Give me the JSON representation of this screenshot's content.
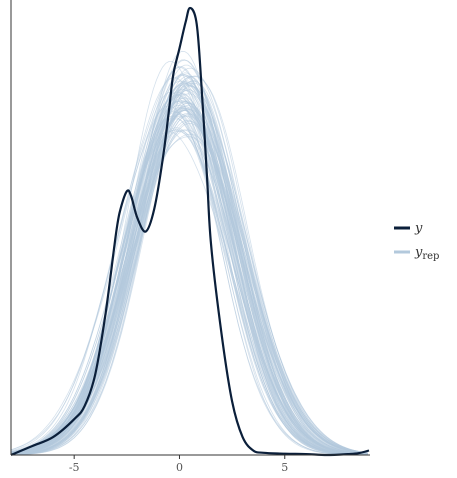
{
  "chart_data": {
    "type": "line",
    "title": "",
    "xlabel": "",
    "ylabel": "",
    "xlim": [
      -8,
      9
    ],
    "ylim": [
      0,
      1
    ],
    "x_ticks": [
      {
        "value": -5,
        "label": "-5"
      },
      {
        "value": 0,
        "label": "0"
      },
      {
        "value": 5,
        "label": "5"
      }
    ],
    "grid": false,
    "legend_position": "right",
    "legend": [
      {
        "key": "y",
        "label": "y",
        "subscript": "",
        "color": "#0b1f3a"
      },
      {
        "key": "yrep",
        "label": "y",
        "subscript": "rep",
        "color": "#b3c9dc"
      }
    ],
    "series": [
      {
        "key": "y",
        "color": "#0b1f3a",
        "x": [
          -8,
          -7,
          -6,
          -5,
          -4.5,
          -4,
          -3.5,
          -3,
          -2.8,
          -2.5,
          -2.3,
          -2,
          -1.6,
          -1.2,
          -0.8,
          -0.5,
          -0.3,
          0,
          0.3,
          0.5,
          0.8,
          1,
          1.3,
          1.5,
          2,
          2.5,
          3,
          3.5,
          4,
          5,
          6,
          7,
          8,
          8.5,
          9
        ],
        "values": [
          0.0,
          0.02,
          0.04,
          0.08,
          0.11,
          0.18,
          0.32,
          0.5,
          0.55,
          0.59,
          0.58,
          0.53,
          0.5,
          0.55,
          0.66,
          0.77,
          0.85,
          0.91,
          0.97,
          1.0,
          0.97,
          0.86,
          0.63,
          0.47,
          0.27,
          0.12,
          0.04,
          0.01,
          0.005,
          0.003,
          0.002,
          0.0,
          0.002,
          0.004,
          0.01
        ]
      }
    ],
    "replicates": {
      "color": "#b3c9dc",
      "center": 0.1,
      "sd": 2.45,
      "peak": 0.81,
      "count": 90
    }
  }
}
